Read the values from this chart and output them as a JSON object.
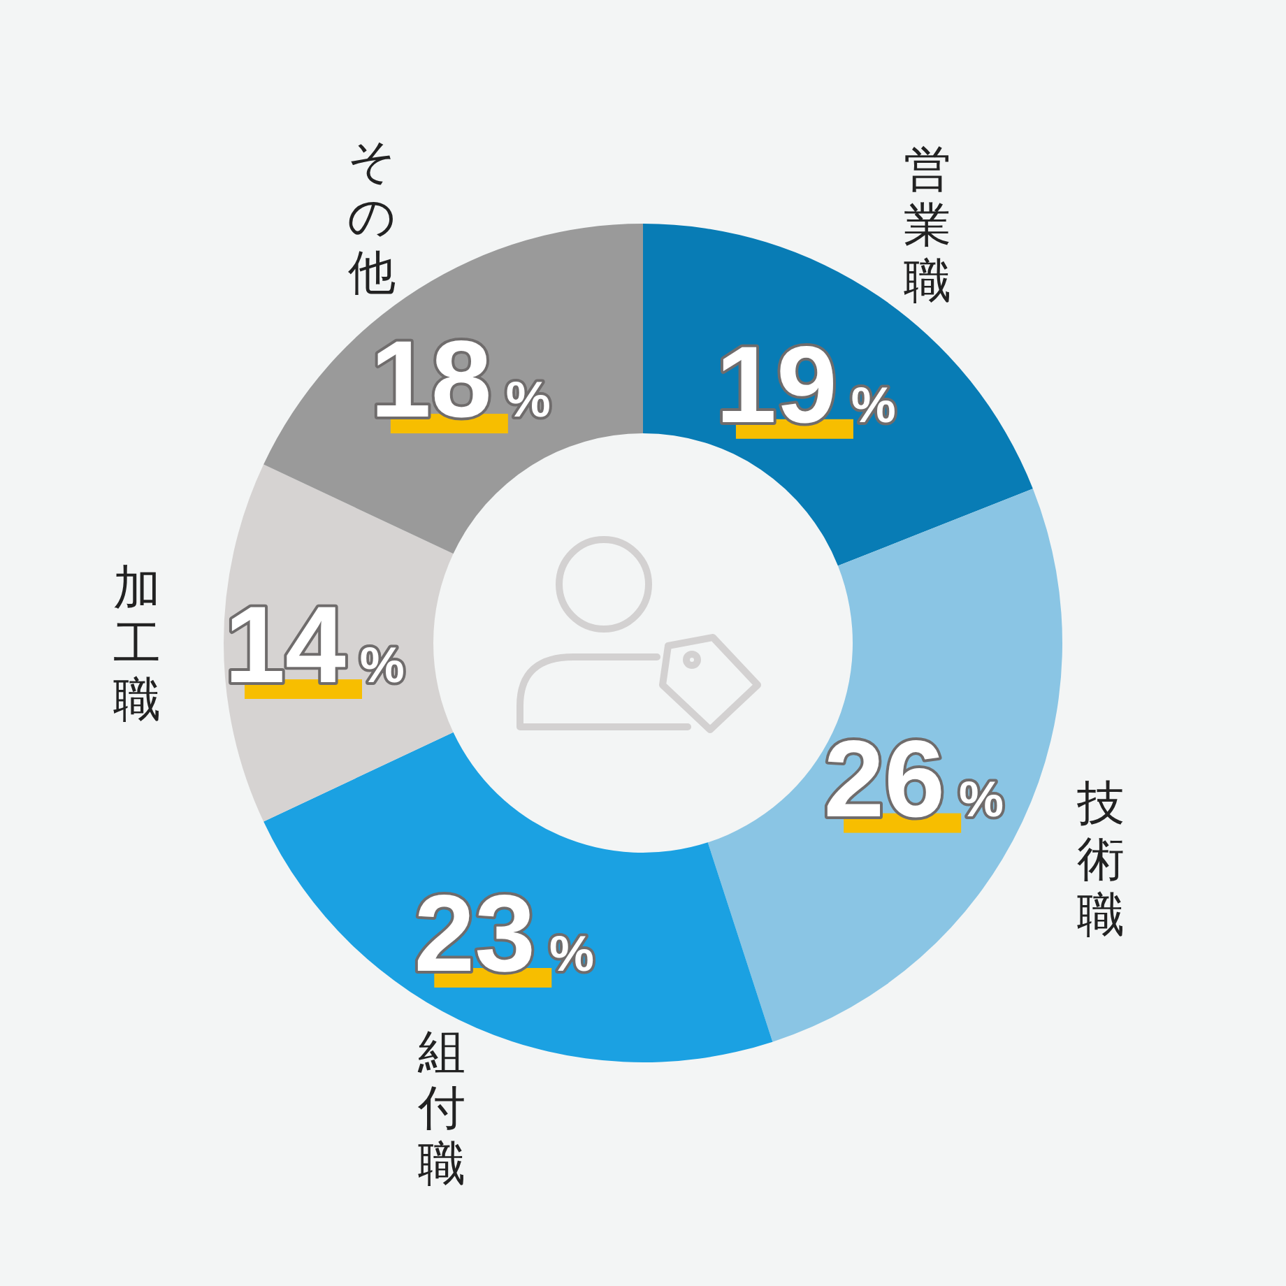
{
  "chart_data": {
    "type": "donut",
    "categories": [
      "営業職",
      "技術職",
      "組付職",
      "加工職",
      "その他"
    ],
    "values": [
      19,
      26,
      23,
      14,
      18
    ],
    "colors": [
      "#087cb5",
      "#8ac5e4",
      "#1ba1e2",
      "#d6d3d2",
      "#9a9a9a"
    ],
    "value_labels": [
      "19%",
      "26%",
      "23%",
      "14%",
      "18%"
    ]
  }
}
